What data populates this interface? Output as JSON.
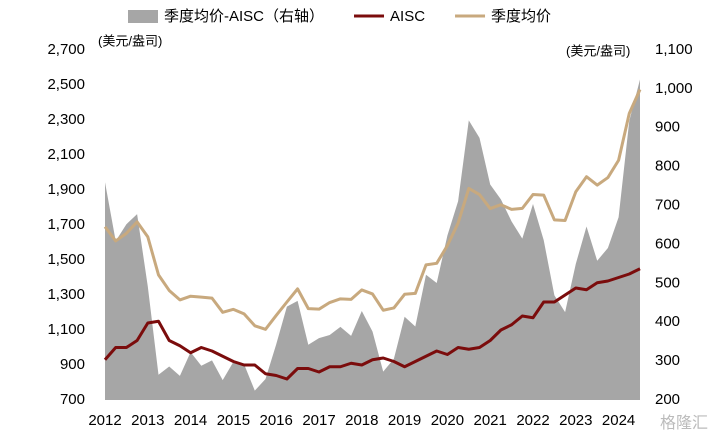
{
  "chart_data": {
    "type": "line",
    "left_unit": "(美元/盎司)",
    "right_unit": "(美元/盎司)",
    "watermark": "格隆汇",
    "categories": [
      "2012",
      null,
      null,
      null,
      "2013",
      null,
      null,
      null,
      "2014",
      null,
      null,
      null,
      "2015",
      null,
      null,
      null,
      "2016",
      null,
      null,
      null,
      "2017",
      null,
      null,
      null,
      "2018",
      null,
      null,
      null,
      "2019",
      null,
      null,
      null,
      "2020",
      null,
      null,
      null,
      "2021",
      null,
      null,
      null,
      "2022",
      null,
      null,
      null,
      "2023",
      null,
      null,
      null,
      "2024",
      null,
      null
    ],
    "series": [
      {
        "name": "季度均价-AISC（右轴）",
        "type": "area",
        "axis": "y2",
        "color": "#a6a6a6",
        "values": [
          760,
          609,
          652,
          678,
          492,
          265,
          286,
          262,
          323,
          288,
          302,
          251,
          298,
          292,
          224,
          254,
          343,
          440,
          455,
          342,
          359,
          367,
          388,
          365,
          429,
          376,
          273,
          306,
          414,
          389,
          522,
          501,
          623,
          711,
          919,
          874,
          754,
          716,
          659,
          615,
          704,
          611,
          469,
          426,
          550,
          646,
          558,
          591,
          670,
          918,
          1024
        ]
      },
      {
        "name": "AISC",
        "type": "line",
        "color": "#7b0c0c",
        "values": [
          930,
          1000,
          1000,
          1040,
          1140,
          1150,
          1040,
          1010,
          970,
          1000,
          980,
          950,
          920,
          900,
          900,
          850,
          840,
          820,
          880,
          880,
          860,
          890,
          890,
          910,
          900,
          930,
          940,
          920,
          890,
          920,
          950,
          980,
          960,
          1000,
          990,
          1000,
          1040,
          1100,
          1130,
          1180,
          1170,
          1260,
          1260,
          1300,
          1340,
          1330,
          1370,
          1380,
          1400,
          1420,
          1450
        ]
      },
      {
        "name": "季度均价",
        "type": "line",
        "color": "#c8a97e",
        "values": [
          1690,
          1609,
          1652,
          1718,
          1632,
          1415,
          1326,
          1272,
          1293,
          1288,
          1282,
          1201,
          1218,
          1192,
          1124,
          1104,
          1183,
          1260,
          1335,
          1222,
          1219,
          1257,
          1278,
          1275,
          1329,
          1306,
          1213,
          1226,
          1304,
          1309,
          1472,
          1481,
          1583,
          1711,
          1909,
          1874,
          1794,
          1816,
          1789,
          1795,
          1874,
          1871,
          1729,
          1726,
          1890,
          1976,
          1928,
          1971,
          2070,
          2338,
          2474
        ]
      }
    ],
    "ylim": [
      700,
      2700
    ],
    "yticks": [
      700,
      900,
      {
        "value": 1100,
        "label": "1,100"
      },
      {
        "value": 1300,
        "label": "1,300"
      },
      {
        "value": 1500,
        "label": "1,500"
      },
      {
        "value": 1700,
        "label": "1,700"
      },
      {
        "value": 1900,
        "label": "1,900"
      },
      {
        "value": 2100,
        "label": "2,100"
      },
      {
        "value": 2300,
        "label": "2,300"
      },
      {
        "value": 2500,
        "label": "2,500"
      },
      {
        "value": 2700,
        "label": "2,700"
      }
    ],
    "y2lim": [
      200,
      1100
    ],
    "y2ticks": [
      200,
      300,
      400,
      500,
      600,
      700,
      800,
      900,
      {
        "value": 1000,
        "label": "1,000"
      },
      {
        "value": 1100,
        "label": "1,100"
      }
    ]
  }
}
